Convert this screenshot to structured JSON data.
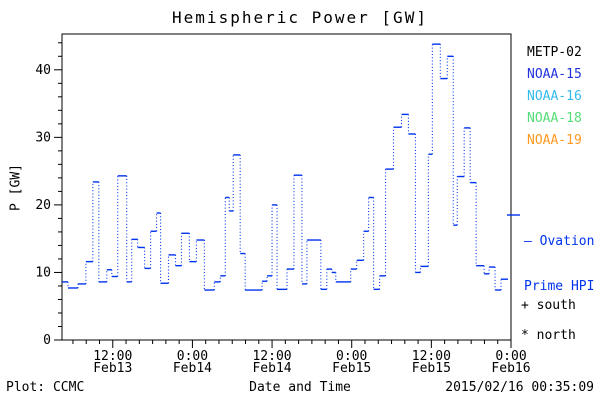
{
  "title": "Hemispheric Power [GW]",
  "footer": {
    "left": "Plot: CCMC",
    "xlabel": "Date and Time",
    "right": "2015/02/16 00:35:09"
  },
  "legend": {
    "satellites": [
      {
        "label": "METP-02",
        "color": "#000000"
      },
      {
        "label": "NOAA-15",
        "color": "#2233dd"
      },
      {
        "label": "NOAA-16",
        "color": "#33bbee"
      },
      {
        "label": "NOAA-18",
        "color": "#55dd77"
      },
      {
        "label": "NOAA-19",
        "color": "#ff9922"
      }
    ],
    "line_legend": {
      "label_line1": "— Ovation",
      "label_line2": "Prime HPI",
      "color": "#0033ee"
    },
    "marker_legend": [
      {
        "symbol": "+",
        "label": "south",
        "text": "+ south"
      },
      {
        "symbol": "*",
        "label": "north",
        "text": "* north"
      }
    ]
  },
  "chart_data": {
    "type": "line",
    "style": "step-post, horizontal runs solid, vertical connectors dotted",
    "title": "Hemispheric Power [GW]",
    "xlabel": "Date and Time",
    "ylabel": "P [GW]",
    "ylim": [
      0,
      45.3
    ],
    "yticks_major": [
      0,
      10,
      20,
      30,
      40
    ],
    "ytick_minor_step": 2,
    "grid": false,
    "legend_position": "right-outside",
    "x_epoch": "hours since 2015-02-13 00:00 UTC",
    "x_hours_range": [
      4.35,
      72
    ],
    "xtick_minor_step_hours": 2,
    "xticks": [
      {
        "t": 12,
        "time": "12:00",
        "date": "Feb13"
      },
      {
        "t": 24,
        "time": "0:00",
        "date": "Feb14"
      },
      {
        "t": 36,
        "time": "12:00",
        "date": "Feb14"
      },
      {
        "t": 48,
        "time": "0:00",
        "date": "Feb15"
      },
      {
        "t": 60,
        "time": "12:00",
        "date": "Feb15"
      },
      {
        "t": 72,
        "time": "0:00",
        "date": "Feb16"
      }
    ],
    "series": [
      {
        "name": "Ovation Prime HPI",
        "color": "#0033ee",
        "end_t": 71.55,
        "steps": [
          [
            4.35,
            8.6
          ],
          [
            5.25,
            7.7
          ],
          [
            6.75,
            8.3
          ],
          [
            7.95,
            11.6
          ],
          [
            9.0,
            23.4
          ],
          [
            9.9,
            8.6
          ],
          [
            11.1,
            10.4
          ],
          [
            11.85,
            9.4
          ],
          [
            12.75,
            24.3
          ],
          [
            14.1,
            8.6
          ],
          [
            14.85,
            14.9
          ],
          [
            15.75,
            13.7
          ],
          [
            16.8,
            10.6
          ],
          [
            17.7,
            16.1
          ],
          [
            18.6,
            18.8
          ],
          [
            19.2,
            8.4
          ],
          [
            20.4,
            12.6
          ],
          [
            21.45,
            11.0
          ],
          [
            22.35,
            15.8
          ],
          [
            23.55,
            11.6
          ],
          [
            24.6,
            14.8
          ],
          [
            25.8,
            7.4
          ],
          [
            27.3,
            8.6
          ],
          [
            28.2,
            9.5
          ],
          [
            28.95,
            21.1
          ],
          [
            29.55,
            19.1
          ],
          [
            30.15,
            27.4
          ],
          [
            31.2,
            12.8
          ],
          [
            31.95,
            7.4
          ],
          [
            34.5,
            8.7
          ],
          [
            35.25,
            9.5
          ],
          [
            36.0,
            20.0
          ],
          [
            36.75,
            7.5
          ],
          [
            38.25,
            10.5
          ],
          [
            39.3,
            24.4
          ],
          [
            40.5,
            8.3
          ],
          [
            41.25,
            14.8
          ],
          [
            43.35,
            7.5
          ],
          [
            44.25,
            10.5
          ],
          [
            45.0,
            10.0
          ],
          [
            45.6,
            8.6
          ],
          [
            47.85,
            10.5
          ],
          [
            48.75,
            11.8
          ],
          [
            49.8,
            16.1
          ],
          [
            50.55,
            21.1
          ],
          [
            51.3,
            7.5
          ],
          [
            52.2,
            9.5
          ],
          [
            53.1,
            25.3
          ],
          [
            54.3,
            31.5
          ],
          [
            55.5,
            33.4
          ],
          [
            56.55,
            30.5
          ],
          [
            57.6,
            10.0
          ],
          [
            58.35,
            10.9
          ],
          [
            59.55,
            27.5
          ],
          [
            60.15,
            43.8
          ],
          [
            61.35,
            38.7
          ],
          [
            62.4,
            42.0
          ],
          [
            63.3,
            17.0
          ],
          [
            63.9,
            24.2
          ],
          [
            64.95,
            31.4
          ],
          [
            65.85,
            23.3
          ],
          [
            66.75,
            11.0
          ],
          [
            67.95,
            9.8
          ],
          [
            68.7,
            10.8
          ],
          [
            69.6,
            7.4
          ],
          [
            70.5,
            9.0
          ]
        ]
      }
    ]
  }
}
